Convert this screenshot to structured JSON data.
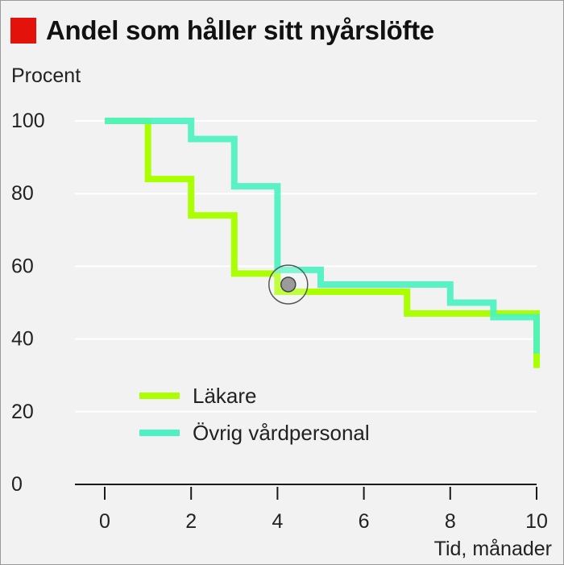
{
  "title": "Andel som håller sitt nyårslöfte",
  "colors": {
    "background": "#f2f2f2",
    "brand": "#e3120b",
    "lakare": "#aaff00",
    "ovrig": "#4cf2c1",
    "grid": "#ffffff"
  },
  "chart_data": {
    "type": "line",
    "step": true,
    "ylabel": "Procent",
    "xlabel": "Tid, månader",
    "xlim": [
      0,
      10
    ],
    "ylim": [
      0,
      100
    ],
    "xticks": [
      0,
      2,
      4,
      6,
      8,
      10
    ],
    "yticks": [
      0,
      20,
      40,
      60,
      80,
      100
    ],
    "grid": true,
    "legend_position": "lower-left",
    "series": [
      {
        "name": "Läkare",
        "color": "#aaff00",
        "x": [
          0,
          1,
          2,
          3,
          4,
          7,
          9,
          10,
          10
        ],
        "y": [
          100,
          84,
          74,
          58,
          53,
          47,
          47,
          47,
          32
        ]
      },
      {
        "name": "Övrig vårdpersonal",
        "color": "#4cf2c1",
        "x": [
          0,
          2,
          3,
          4,
          5,
          8,
          9,
          10,
          10
        ],
        "y": [
          100,
          95,
          82,
          59,
          55,
          50,
          46,
          46,
          36
        ]
      }
    ],
    "marker": {
      "x": 4.25,
      "y": 55
    }
  }
}
